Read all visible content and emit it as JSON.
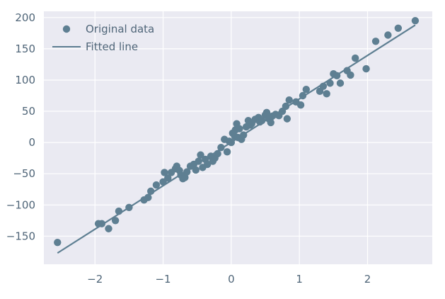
{
  "chart_data": {
    "type": "scatter",
    "title": "",
    "xlabel": "",
    "ylabel": "",
    "xlim": [
      -2.75,
      2.95
    ],
    "ylim": [
      -195,
      210
    ],
    "x_ticks": [
      -2,
      -1,
      0,
      1,
      2
    ],
    "x_tick_labels": [
      "−2",
      "−1",
      "0",
      "1",
      "2"
    ],
    "y_ticks": [
      -150,
      -100,
      -50,
      0,
      50,
      100,
      150,
      200
    ],
    "y_tick_labels": [
      "−150",
      "−100",
      "−50",
      "0",
      "50",
      "100",
      "150",
      "200"
    ],
    "grid": true,
    "legend_position": "upper-left",
    "colors": {
      "plot_background": "#eaeaf2",
      "grid": "#ffffff",
      "marker": "#5e7f92",
      "line": "#5e7f92",
      "tick_text": "#4f6578",
      "legend_text": "#4f6578"
    },
    "series": [
      {
        "name": "Original data",
        "kind": "scatter",
        "x": [
          -2.55,
          -1.95,
          -1.9,
          -1.8,
          -1.7,
          -1.65,
          -1.5,
          -1.28,
          -1.22,
          -1.18,
          -1.1,
          -1.0,
          -0.98,
          -0.93,
          -0.88,
          -0.82,
          -0.8,
          -0.76,
          -0.74,
          -0.71,
          -0.68,
          -0.65,
          -0.6,
          -0.55,
          -0.52,
          -0.48,
          -0.45,
          -0.42,
          -0.38,
          -0.35,
          -0.3,
          -0.27,
          -0.24,
          -0.2,
          -0.15,
          -0.1,
          -0.06,
          -0.03,
          0.0,
          0.02,
          0.05,
          0.06,
          0.08,
          0.1,
          0.12,
          0.15,
          0.18,
          0.22,
          0.25,
          0.28,
          0.3,
          0.35,
          0.4,
          0.42,
          0.45,
          0.5,
          0.52,
          0.55,
          0.58,
          0.6,
          0.65,
          0.7,
          0.75,
          0.8,
          0.82,
          0.85,
          0.95,
          1.02,
          1.05,
          1.1,
          1.3,
          1.35,
          1.4,
          1.45,
          1.5,
          1.55,
          1.6,
          1.7,
          1.75,
          1.82,
          1.98,
          2.12,
          2.3,
          2.45,
          2.7
        ],
        "y": [
          -160,
          -130,
          -130,
          -138,
          -125,
          -110,
          -104,
          -92,
          -88,
          -78,
          -68,
          -63,
          -48,
          -57,
          -48,
          -42,
          -38,
          -45,
          -52,
          -58,
          -56,
          -47,
          -38,
          -35,
          -44,
          -30,
          -20,
          -40,
          -27,
          -35,
          -22,
          -30,
          -25,
          -18,
          -8,
          5,
          -15,
          2,
          0,
          15,
          10,
          20,
          30,
          8,
          22,
          5,
          12,
          25,
          35,
          28,
          30,
          37,
          40,
          33,
          35,
          44,
          48,
          38,
          32,
          42,
          45,
          43,
          50,
          58,
          38,
          68,
          65,
          60,
          75,
          85,
          82,
          90,
          78,
          95,
          110,
          107,
          95,
          115,
          108,
          135,
          118,
          162,
          172,
          183,
          195
        ]
      },
      {
        "name": "Fitted line",
        "kind": "line",
        "x": [
          -2.55,
          2.7
        ],
        "y": [
          -177,
          188
        ]
      }
    ]
  }
}
